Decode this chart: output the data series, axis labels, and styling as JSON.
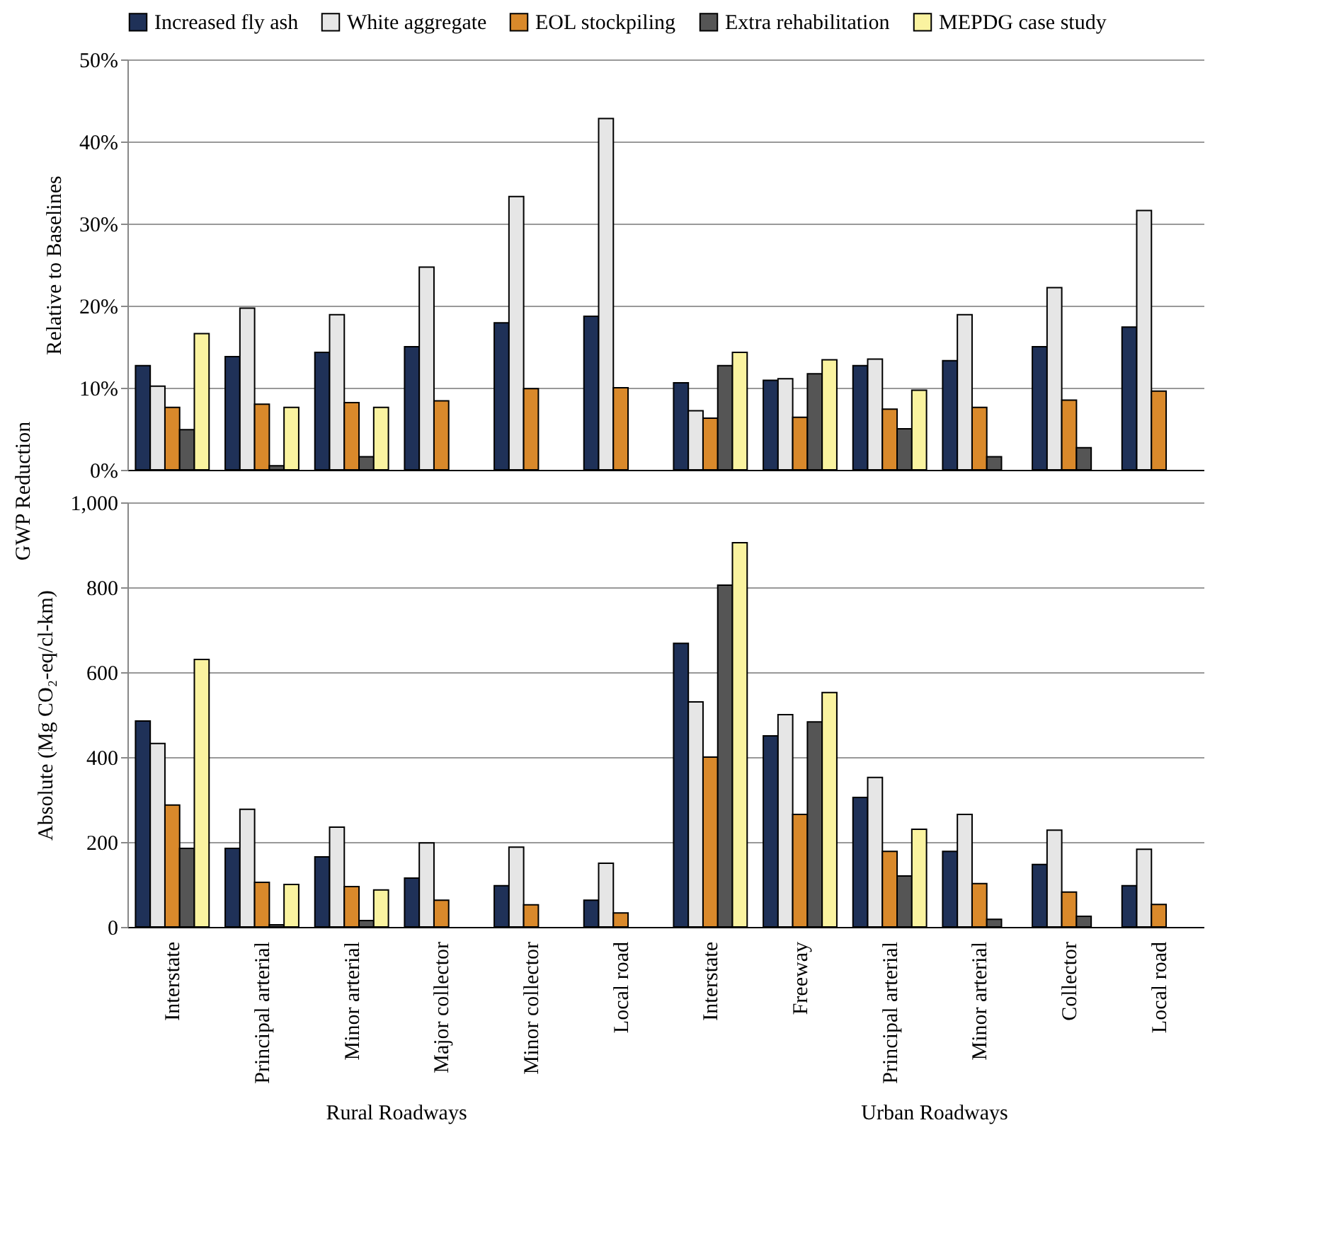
{
  "chart_data": [
    {
      "type": "bar",
      "ylabel": "Relative to Baselines",
      "legend": "top",
      "grid": "y",
      "tick_labels": "y",
      "categories": [
        null,
        null,
        null,
        null,
        null,
        null,
        null,
        null,
        null,
        null,
        null,
        null
      ],
      "ylim": [
        0,
        50
      ],
      "yticks": [
        {
          "value": 0,
          "label": "0%"
        },
        {
          "value": 10,
          "label": "10%"
        },
        {
          "value": 20,
          "label": "20%"
        },
        {
          "value": 30,
          "label": "30%"
        },
        {
          "value": 40,
          "label": "40%"
        },
        {
          "value": 50,
          "label": "50%"
        }
      ],
      "series": [
        {
          "name": "Increased fly ash",
          "color": "#1f3158",
          "values": [
            12.7,
            13.8,
            14.3,
            15.0,
            17.9,
            18.7,
            10.6,
            10.9,
            12.7,
            13.3,
            15.0,
            17.4
          ]
        },
        {
          "name": "White aggregate",
          "color": "#e6e6e6",
          "values": [
            10.2,
            19.7,
            18.9,
            24.7,
            33.3,
            42.8,
            7.2,
            11.1,
            13.5,
            18.9,
            22.2,
            31.6
          ]
        },
        {
          "name": "EOL stockpiling",
          "color": "#d9892b",
          "values": [
            7.6,
            8.0,
            8.2,
            8.4,
            9.9,
            10.0,
            6.3,
            6.4,
            7.4,
            7.6,
            8.5,
            9.6
          ]
        },
        {
          "name": "Extra rehabilitation",
          "color": "#555555",
          "values": [
            4.9,
            0.5,
            1.6,
            null,
            null,
            null,
            12.7,
            11.7,
            5.0,
            1.6,
            2.7,
            null
          ]
        },
        {
          "name": "MEPDG case study",
          "color": "#faf3a0",
          "values": [
            16.6,
            7.6,
            7.6,
            null,
            null,
            null,
            14.3,
            13.4,
            9.7,
            null,
            null,
            null
          ]
        }
      ]
    },
    {
      "type": "bar",
      "ylabel": "Absolute (Mg CO₂-eq/cl-km)",
      "grid": "y",
      "categories": [
        "Interstate",
        "Principal arterial",
        "Minor arterial",
        "Major collector",
        "Minor collector",
        "Local road",
        "Interstate",
        "Freeway",
        "Principal arterial",
        "Minor arterial",
        "Collector",
        "Local road"
      ],
      "ylim": [
        0,
        1000
      ],
      "yticks": [
        0,
        200,
        400,
        600,
        800,
        {
          "value": 1000,
          "label": "1,000"
        }
      ],
      "annotations": [
        "GWP Reduction",
        "Rural Roadways",
        "Urban Roadways"
      ],
      "series": [
        {
          "color": "#1f3158",
          "values": [
            485,
            185,
            165,
            115,
            97,
            63,
            668,
            450,
            305,
            178,
            147,
            97
          ]
        },
        {
          "color": "#e6e6e6",
          "values": [
            432,
            277,
            235,
            198,
            188,
            150,
            530,
            500,
            352,
            265,
            228,
            183
          ]
        },
        {
          "color": "#d9892b",
          "values": [
            287,
            105,
            95,
            63,
            52,
            33,
            400,
            265,
            178,
            102,
            82,
            53
          ]
        },
        {
          "color": "#555555",
          "values": [
            185,
            5,
            15,
            null,
            null,
            null,
            805,
            483,
            120,
            18,
            25,
            null
          ]
        },
        {
          "color": "#faf3a0",
          "values": [
            630,
            100,
            87,
            null,
            null,
            null,
            905,
            552,
            230,
            null,
            null,
            null
          ]
        }
      ]
    }
  ]
}
